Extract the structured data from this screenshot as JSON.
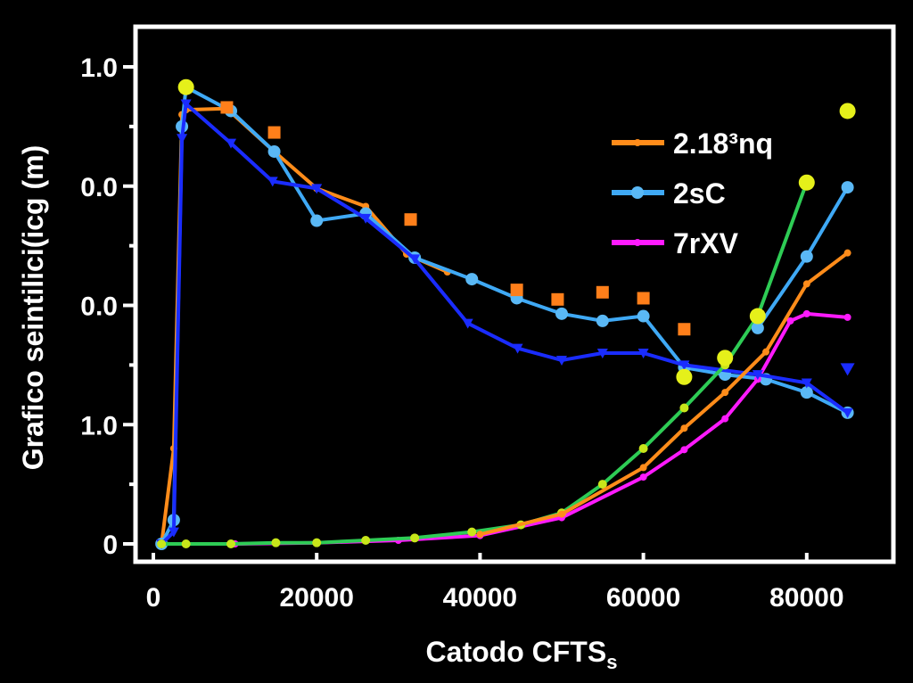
{
  "chart_data": {
    "type": "line",
    "title": "",
    "xlabel": "Catodo CFTS",
    "xlabel_subscript": "s",
    "ylabel": "Grafico seintilici(icg  (m)",
    "xlim": [
      -1000,
      89000
    ],
    "ylim": [
      -0.1,
      4.3
    ],
    "x_ticks": [
      0,
      20000,
      40000,
      60000,
      80000
    ],
    "x_tick_labels": [
      "0",
      "20000",
      "40000",
      "60000",
      "80000"
    ],
    "y_ticks": [
      0,
      1,
      2,
      3,
      4
    ],
    "y_tick_labels": [
      "0",
      "1.0",
      "0.0",
      "0.0",
      "1.0"
    ],
    "grid": false,
    "legend_position": "top-right",
    "background": "#000000",
    "series": [
      {
        "name": "2.18³nq",
        "color": "#ff8c1a",
        "marker": "circle-small",
        "x": [
          1000,
          2500,
          3500,
          4000,
          9000,
          14800,
          20000,
          26000,
          31000,
          36000
        ],
        "y": [
          0,
          0.8,
          3.6,
          3.64,
          3.65,
          3.29,
          2.98,
          2.83,
          2.43,
          2.28
        ]
      },
      {
        "name": "2sC",
        "color": "#3fa9f5",
        "marker": "circle",
        "x": [
          1000,
          2500,
          3500,
          4000,
          9500,
          14800,
          20000,
          26000,
          32000,
          39000,
          44500,
          50000,
          55000,
          60000,
          65000,
          70000,
          75000,
          80000,
          85000
        ],
        "y": [
          0,
          0.2,
          3.5,
          3.83,
          3.63,
          3.29,
          2.71,
          2.77,
          2.4,
          2.22,
          2.06,
          1.93,
          1.87,
          1.91,
          1.48,
          1.42,
          1.38,
          1.27,
          1.1
        ]
      },
      {
        "name": "7rXV",
        "color": "#ff1aff",
        "marker": "circle-small",
        "x": [
          1000,
          10000,
          20000,
          30000,
          40000,
          50000,
          60000,
          65000,
          70000,
          74000,
          78000,
          80000,
          85000
        ],
        "y": [
          0,
          0,
          0.01,
          0.03,
          0.07,
          0.22,
          0.56,
          0.79,
          1.05,
          1.38,
          1.87,
          1.93,
          1.9
        ]
      },
      {
        "color": "#1a2cff",
        "marker": "triangle",
        "x": [
          1000,
          2500,
          3500,
          4000,
          9500,
          14600,
          20000,
          26000,
          32000,
          38500,
          44600,
          50000,
          55000,
          60000,
          65000,
          74000,
          80000,
          85000
        ],
        "y": [
          0,
          0.1,
          3.4,
          3.69,
          3.36,
          3.04,
          2.98,
          2.73,
          2.39,
          1.85,
          1.64,
          1.54,
          1.6,
          1.6,
          1.5,
          1.42,
          1.35,
          1.1
        ]
      },
      {
        "color": "#2ecc55",
        "marker": "circle-yellow",
        "x": [
          1000,
          4000,
          9500,
          15000,
          20000,
          26000,
          32000,
          39000,
          45000,
          50000,
          55000,
          60000,
          65000,
          70000,
          74000,
          80000
        ],
        "y": [
          0,
          0,
          0,
          0.01,
          0.01,
          0.03,
          0.05,
          0.1,
          0.16,
          0.26,
          0.5,
          0.8,
          1.14,
          1.5,
          1.91,
          3.03
        ]
      },
      {
        "color": "#ff8c1a",
        "marker": "circle-small",
        "x": [
          40000,
          50000,
          60000,
          65000,
          70000,
          75000,
          80000,
          85000
        ],
        "y": [
          0.08,
          0.25,
          0.64,
          0.97,
          1.27,
          1.61,
          2.18,
          2.44
        ]
      },
      {
        "color": "#3fa9f5",
        "marker": "circle",
        "x": [
          74000,
          80000,
          85000
        ],
        "y": [
          1.81,
          2.41,
          2.99
        ]
      }
    ],
    "scatter": [
      {
        "color": "#ff7f1a",
        "marker": "square",
        "x": [
          9000,
          14800,
          31500,
          44500,
          49500,
          55000,
          60000,
          65000
        ],
        "y": [
          3.66,
          3.45,
          2.72,
          2.13,
          2.05,
          2.11,
          2.06,
          1.8
        ]
      },
      {
        "color": "#e5f01a",
        "marker": "circle",
        "x": [
          4000,
          65000,
          70000,
          74000,
          80000,
          85000
        ],
        "y": [
          3.83,
          1.4,
          1.56,
          1.91,
          3.03,
          3.63
        ]
      },
      {
        "color": "#1a2cff",
        "marker": "triangle",
        "x": [
          85000
        ],
        "y": [
          1.47
        ]
      }
    ]
  }
}
